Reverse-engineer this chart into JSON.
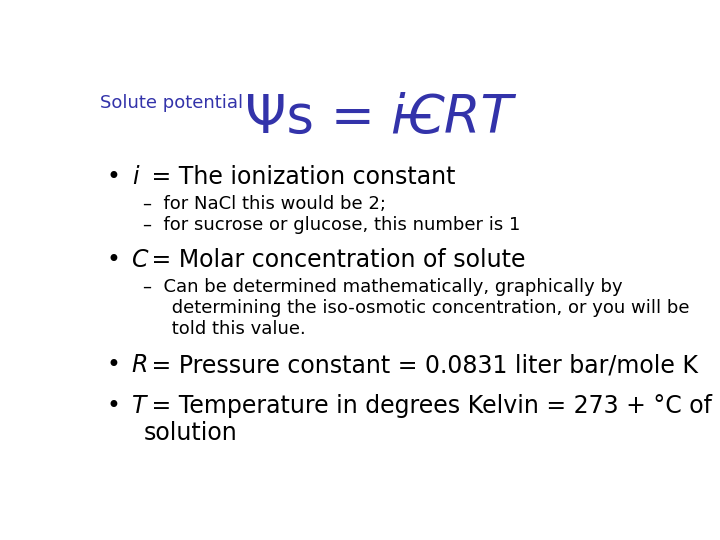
{
  "bg_color": "#ffffff",
  "title_label": "Solute potential",
  "title_label_color": "#3333aa",
  "title_formula_color": "#3333aa",
  "title_label_size": 13,
  "title_formula_size": 38,
  "bullet_color": "#000000",
  "text_size": 17,
  "sub_size": 13,
  "bullet_items": [
    {
      "text_italic": "i",
      "text_rest": " = The ionization constant",
      "sub_items": [
        "–  for NaCl this would be 2;",
        "–  for sucrose or glucose, this number is 1"
      ]
    },
    {
      "text_italic": "C",
      "text_rest": " = Molar concentration of solute",
      "sub_items": [
        "–  Can be determined mathematically, graphically by\n     determining the iso-osmotic concentration, or you will be\n     told this value."
      ]
    },
    {
      "text_italic": "R",
      "text_rest": " = Pressure constant = 0.0831 liter bar/mole K",
      "sub_items": []
    },
    {
      "text_italic": "T",
      "text_rest": " = Temperature in degrees Kelvin = 273 + °C of\nsolution",
      "sub_items": []
    }
  ]
}
